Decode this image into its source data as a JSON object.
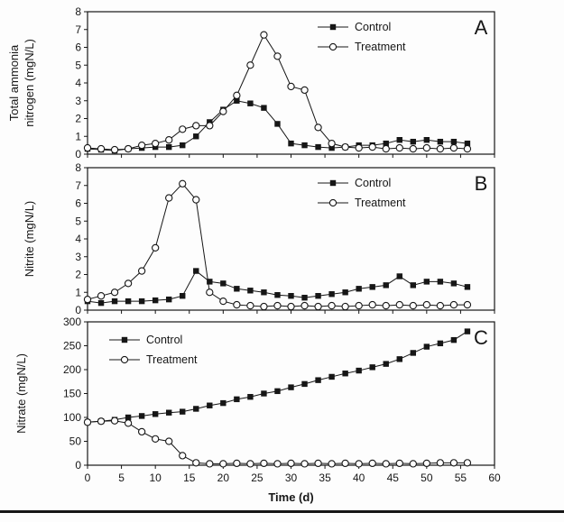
{
  "figure": {
    "xlabel": "Time (d)",
    "legend_labels": [
      "Control",
      "Treatment"
    ],
    "panel_labels": [
      "A",
      "B",
      "C"
    ],
    "accent_color": "#111111"
  },
  "chart_data": [
    {
      "type": "line",
      "panel_label": "A",
      "ylabel": "Total ammonia nitrogen (mgN/L)",
      "ylabel_lines": [
        "Total ammonia",
        "nitrogen (mgN/L)"
      ],
      "ylim": [
        0,
        8
      ],
      "yticks": [
        0,
        1,
        2,
        3,
        4,
        5,
        6,
        7,
        8
      ],
      "xlim": [
        0,
        60
      ],
      "xticks": [
        0,
        5,
        10,
        15,
        20,
        25,
        30,
        35,
        40,
        45,
        50,
        55,
        60
      ],
      "show_x_tick_labels": false,
      "legend_position": "top-center",
      "x": [
        0,
        2,
        4,
        6,
        8,
        10,
        12,
        14,
        16,
        18,
        20,
        22,
        24,
        26,
        28,
        30,
        32,
        34,
        36,
        38,
        40,
        42,
        44,
        46,
        48,
        50,
        52,
        54,
        56
      ],
      "series": [
        {
          "name": "Control",
          "marker": "filled-square",
          "values": [
            0.3,
            0.25,
            0.2,
            0.3,
            0.35,
            0.4,
            0.4,
            0.5,
            1.0,
            1.8,
            2.5,
            3.0,
            2.85,
            2.6,
            1.7,
            0.6,
            0.5,
            0.4,
            0.35,
            0.4,
            0.5,
            0.5,
            0.6,
            0.8,
            0.7,
            0.8,
            0.7,
            0.7,
            0.6
          ]
        },
        {
          "name": "Treatment",
          "marker": "open-circle",
          "values": [
            0.35,
            0.3,
            0.25,
            0.3,
            0.5,
            0.6,
            0.8,
            1.4,
            1.6,
            1.6,
            2.4,
            3.3,
            5.0,
            6.7,
            5.5,
            3.8,
            3.6,
            1.5,
            0.6,
            0.4,
            0.35,
            0.4,
            0.3,
            0.35,
            0.3,
            0.35,
            0.3,
            0.35,
            0.3
          ]
        }
      ]
    },
    {
      "type": "line",
      "panel_label": "B",
      "ylabel": "Nitrite (mgN/L)",
      "ylabel_lines": [
        "Nitrite (mgN/L)"
      ],
      "ylim": [
        0,
        8
      ],
      "yticks": [
        0,
        1,
        2,
        3,
        4,
        5,
        6,
        7,
        8
      ],
      "xlim": [
        0,
        60
      ],
      "xticks": [
        0,
        5,
        10,
        15,
        20,
        25,
        30,
        35,
        40,
        45,
        50,
        55,
        60
      ],
      "show_x_tick_labels": false,
      "legend_position": "top-center",
      "x": [
        0,
        2,
        4,
        6,
        8,
        10,
        12,
        14,
        16,
        18,
        20,
        22,
        24,
        26,
        28,
        30,
        32,
        34,
        36,
        38,
        40,
        42,
        44,
        46,
        48,
        50,
        52,
        54,
        56
      ],
      "series": [
        {
          "name": "Control",
          "marker": "filled-square",
          "values": [
            0.5,
            0.4,
            0.5,
            0.5,
            0.5,
            0.55,
            0.6,
            0.8,
            2.2,
            1.6,
            1.5,
            1.2,
            1.1,
            1.0,
            0.85,
            0.8,
            0.7,
            0.8,
            0.9,
            1.0,
            1.2,
            1.3,
            1.4,
            1.9,
            1.4,
            1.6,
            1.6,
            1.5,
            1.3
          ]
        },
        {
          "name": "Treatment",
          "marker": "open-circle",
          "values": [
            0.6,
            0.8,
            1.0,
            1.5,
            2.2,
            3.5,
            6.3,
            7.1,
            6.2,
            1.0,
            0.5,
            0.3,
            0.25,
            0.2,
            0.25,
            0.2,
            0.25,
            0.2,
            0.25,
            0.2,
            0.25,
            0.3,
            0.25,
            0.3,
            0.25,
            0.3,
            0.25,
            0.3,
            0.3
          ]
        }
      ]
    },
    {
      "type": "line",
      "panel_label": "C",
      "ylabel": "Nitrate (mgN/L)",
      "ylabel_lines": [
        "Nitrate (mgN/L)"
      ],
      "xlabel": "Time (d)",
      "ylim": [
        0,
        300
      ],
      "yticks": [
        0,
        50,
        100,
        150,
        200,
        250,
        300
      ],
      "xlim": [
        0,
        60
      ],
      "xticks": [
        0,
        5,
        10,
        15,
        20,
        25,
        30,
        35,
        40,
        45,
        50,
        55,
        60
      ],
      "show_x_tick_labels": true,
      "legend_position": "top-left",
      "x": [
        0,
        2,
        4,
        6,
        8,
        10,
        12,
        14,
        16,
        18,
        20,
        22,
        24,
        26,
        28,
        30,
        32,
        34,
        36,
        38,
        40,
        42,
        44,
        46,
        48,
        50,
        52,
        54,
        56
      ],
      "series": [
        {
          "name": "Control",
          "marker": "filled-square",
          "values": [
            90,
            92,
            95,
            100,
            103,
            107,
            110,
            112,
            118,
            125,
            130,
            138,
            143,
            150,
            155,
            163,
            170,
            178,
            185,
            192,
            198,
            205,
            212,
            222,
            235,
            248,
            255,
            262,
            280
          ]
        },
        {
          "name": "Treatment",
          "marker": "open-circle",
          "values": [
            90,
            92,
            93,
            88,
            70,
            55,
            50,
            20,
            5,
            3,
            3,
            4,
            3,
            4,
            3,
            4,
            3,
            4,
            3,
            4,
            3,
            4,
            3,
            4,
            3,
            4,
            5,
            5,
            5
          ]
        }
      ]
    }
  ]
}
